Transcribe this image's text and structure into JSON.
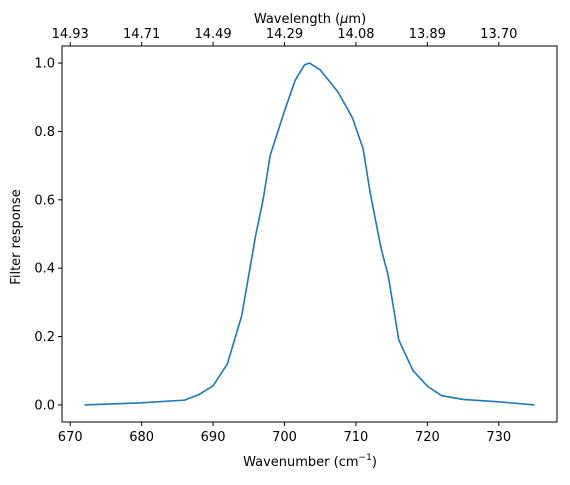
{
  "chart_data": {
    "type": "line",
    "xlabel": "Wavenumber (cm",
    "xlabel_sup": "−1",
    "xlabel_end": ")",
    "ylabel": "Filter response",
    "top_label": "Wavelength (",
    "top_label_mu": "μ",
    "top_label_end": "m)",
    "xlim": [
      668.85,
      738.15
    ],
    "ylim": [
      -0.05,
      1.05
    ],
    "x_ticks": [
      670,
      680,
      690,
      700,
      710,
      720,
      730
    ],
    "x_tick_labels": [
      "670",
      "680",
      "690",
      "700",
      "710",
      "720",
      "730"
    ],
    "y_ticks": [
      0.0,
      0.2,
      0.4,
      0.6,
      0.8,
      1.0
    ],
    "y_tick_labels": [
      "0.0",
      "0.2",
      "0.4",
      "0.6",
      "0.8",
      "1.0"
    ],
    "top_ticks_wavenumber": [
      670,
      680,
      690,
      700,
      710,
      720,
      730
    ],
    "top_tick_labels": [
      "14.93",
      "14.71",
      "14.49",
      "14.29",
      "14.08",
      "13.89",
      "13.70"
    ],
    "series": [
      {
        "color": "#1f77b4",
        "x": [
          672,
          680,
          686,
          688,
          690,
          692,
          694,
          696,
          697,
          698,
          700,
          701.5,
          702.8,
          703.5,
          705,
          707.5,
          709.5,
          711,
          712,
          713.5,
          714.5,
          716,
          718,
          720,
          722,
          725,
          730,
          735
        ],
        "y": [
          0.0,
          0.006,
          0.014,
          0.03,
          0.056,
          0.12,
          0.26,
          0.5,
          0.6,
          0.73,
          0.86,
          0.95,
          0.995,
          1.0,
          0.98,
          0.915,
          0.84,
          0.75,
          0.62,
          0.46,
          0.38,
          0.19,
          0.1,
          0.055,
          0.027,
          0.016,
          0.009,
          0.0
        ]
      }
    ]
  }
}
